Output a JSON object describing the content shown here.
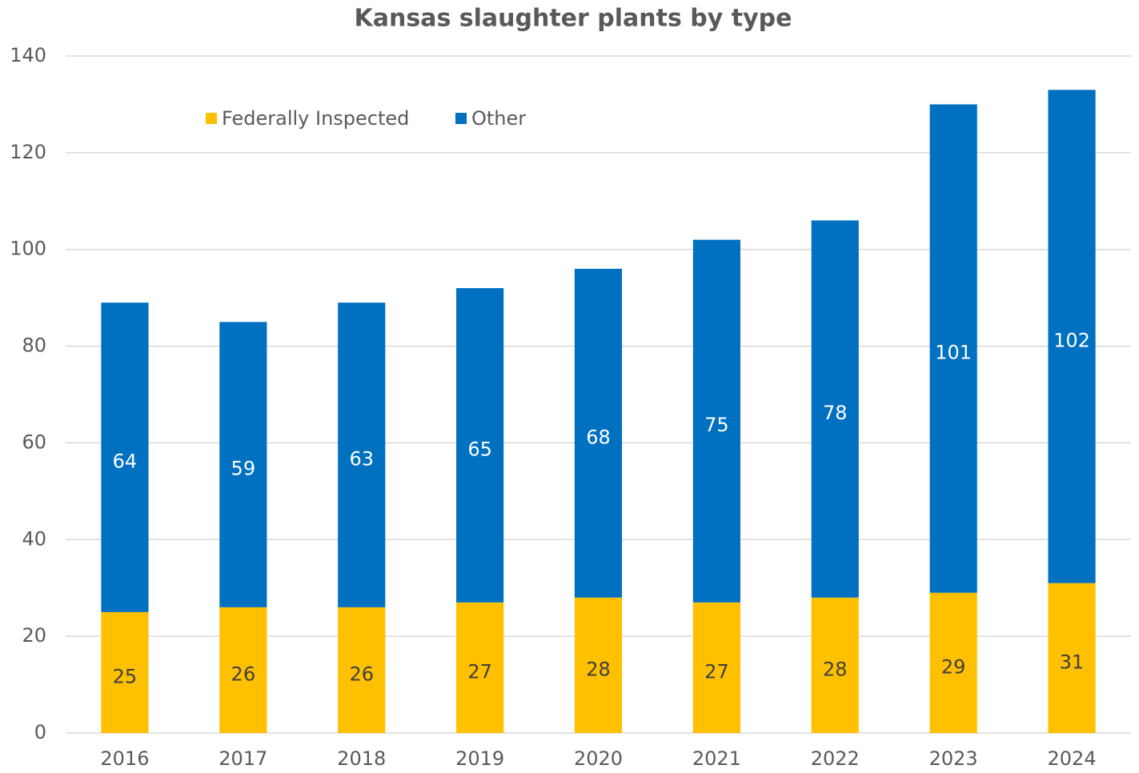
{
  "chart_data": {
    "type": "stacked_bar",
    "title": "Kansas slaughter plants by type",
    "categories": [
      "2016",
      "2017",
      "2018",
      "2019",
      "2020",
      "2021",
      "2022",
      "2023",
      "2024"
    ],
    "series": [
      {
        "name": "Federally Inspected",
        "color": "#ffc000",
        "values": [
          25,
          26,
          26,
          27,
          28,
          27,
          28,
          29,
          31
        ]
      },
      {
        "name": "Other",
        "color": "#0070c0",
        "values": [
          64,
          59,
          63,
          65,
          68,
          75,
          78,
          101,
          102
        ]
      }
    ],
    "ylim": [
      0,
      140
    ],
    "yticks": [
      0,
      20,
      40,
      60,
      80,
      100,
      120,
      140
    ],
    "grid": true
  }
}
